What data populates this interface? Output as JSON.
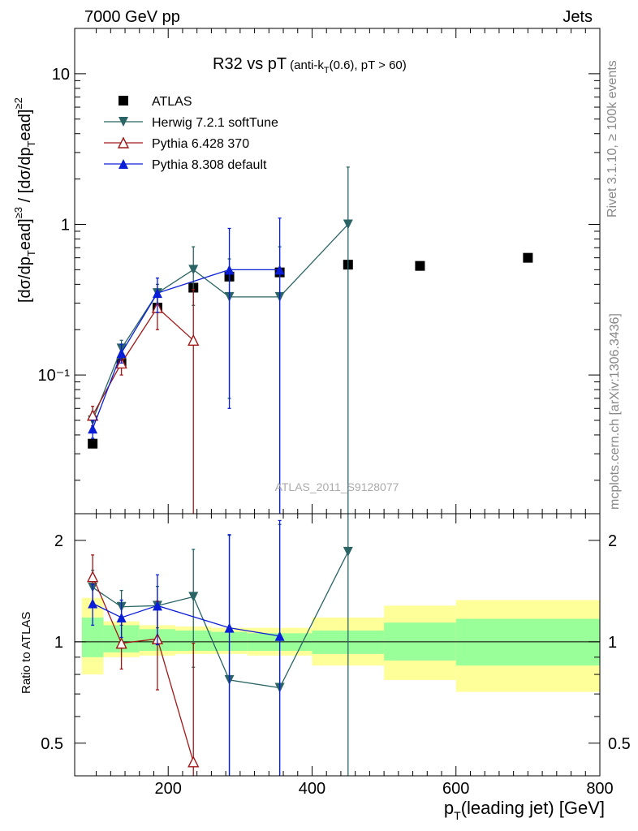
{
  "header": {
    "energy": "7000 GeV pp",
    "category": "Jets"
  },
  "sidebar": {
    "rivet": "Rivet 3.1.10, ≥ 100k events",
    "source": "mcplots.cern.ch [arXiv:1306.3436]"
  },
  "chart_data": {
    "type": "scatter",
    "title": "R32 vs pT",
    "title_sub": "(anti-k",
    "title_sub_T": "T",
    "title_sub_rest": "(0.6), pT > 60)",
    "watermark": "ATLAS_2011_S9128077",
    "xlabel": "p",
    "xlabel_sub": "T",
    "xlabel_rest": "(leading jet) [GeV]",
    "ylabel": "[dσ/dpᵀead]≥3 / [dσ/dpᵀead]≥2",
    "ylabel_parts": [
      "[dσ/dp",
      "T",
      "ead]",
      "≥3",
      " / [dσ/dp",
      "T",
      "ead]",
      "≥2"
    ],
    "ratio_ylabel": "Ratio to ATLAS",
    "xlim": [
      70,
      800
    ],
    "ylim": [
      0.012,
      20
    ],
    "ylog": true,
    "ratio_ylim": [
      0.4,
      2.4
    ],
    "ratio_ylog": true,
    "x_tick_labels": [
      "200",
      "400",
      "600",
      "800"
    ],
    "y_tick_labels": [
      "10⁻¹",
      "1",
      "10"
    ],
    "ratio_tick_labels": [
      "0.5",
      "1",
      "2"
    ],
    "legend_position": "top-left",
    "bins": [
      [
        80,
        110
      ],
      [
        110,
        160
      ],
      [
        160,
        210
      ],
      [
        210,
        260
      ],
      [
        260,
        310
      ],
      [
        310,
        400
      ],
      [
        400,
        500
      ],
      [
        500,
        600
      ],
      [
        600,
        800
      ]
    ],
    "series": [
      {
        "name": "ATLAS",
        "color": "#000000",
        "marker": "square",
        "x": [
          95,
          135,
          185,
          235,
          285,
          355,
          450,
          550,
          700
        ],
        "y": [
          0.035,
          0.12,
          0.28,
          0.38,
          0.45,
          0.48,
          0.54,
          0.53,
          0.6
        ]
      },
      {
        "name": "Herwig 7.2.1 softTune",
        "color": "#2a6464",
        "marker": "triangle-down",
        "x": [
          95,
          135,
          185,
          235,
          285,
          355,
          450
        ],
        "y": [
          0.05,
          0.15,
          0.35,
          0.5,
          0.33,
          0.33,
          1.0
        ],
        "err": [
          0.007,
          0.02,
          0.05,
          0.21,
          0.26,
          0.38,
          1.4
        ],
        "ratio": [
          1.45,
          1.27,
          1.28,
          1.36,
          0.77,
          0.73,
          1.85
        ],
        "ratio_err": [
          0.18,
          0.15,
          0.18,
          0.52,
          1.3,
          1.5,
          1.5
        ]
      },
      {
        "name": "Pythia 6.428 370",
        "color": "#a01818",
        "marker": "triangle-up-open",
        "x": [
          95,
          135,
          185,
          235
        ],
        "y": [
          0.054,
          0.12,
          0.28,
          0.17
        ],
        "err": [
          0.008,
          0.02,
          0.08,
          0.2
        ],
        "ratio": [
          1.56,
          0.99,
          1.02,
          0.44
        ],
        "ratio_err": [
          0.25,
          0.16,
          0.3,
          0.55
        ]
      },
      {
        "name": "Pythia 8.308 default",
        "color": "#0a1ed8",
        "marker": "triangle-up",
        "x": [
          95,
          135,
          185,
          285,
          355
        ],
        "y": [
          0.044,
          0.14,
          0.35,
          0.5,
          0.5
        ],
        "err": [
          0.006,
          0.02,
          0.09,
          0.44,
          0.6
        ],
        "ratio": [
          1.3,
          1.18,
          1.28,
          1.1,
          1.04
        ],
        "ratio_err": [
          0.18,
          0.15,
          0.3,
          0.98,
          1.25
        ]
      }
    ],
    "ratio_bands": {
      "green": [
        [
          0.9,
          1.18
        ],
        [
          0.93,
          1.12
        ],
        [
          0.94,
          1.09
        ],
        [
          0.94,
          1.08
        ],
        [
          0.94,
          1.07
        ],
        [
          0.94,
          1.06
        ],
        [
          0.92,
          1.08
        ],
        [
          0.88,
          1.14
        ],
        [
          0.85,
          1.17
        ]
      ],
      "yellow": [
        [
          0.8,
          1.35
        ],
        [
          0.9,
          1.15
        ],
        [
          0.91,
          1.12
        ],
        [
          0.92,
          1.11
        ],
        [
          0.92,
          1.1
        ],
        [
          0.91,
          1.1
        ],
        [
          0.85,
          1.18
        ],
        [
          0.77,
          1.28
        ],
        [
          0.71,
          1.33
        ]
      ]
    }
  }
}
